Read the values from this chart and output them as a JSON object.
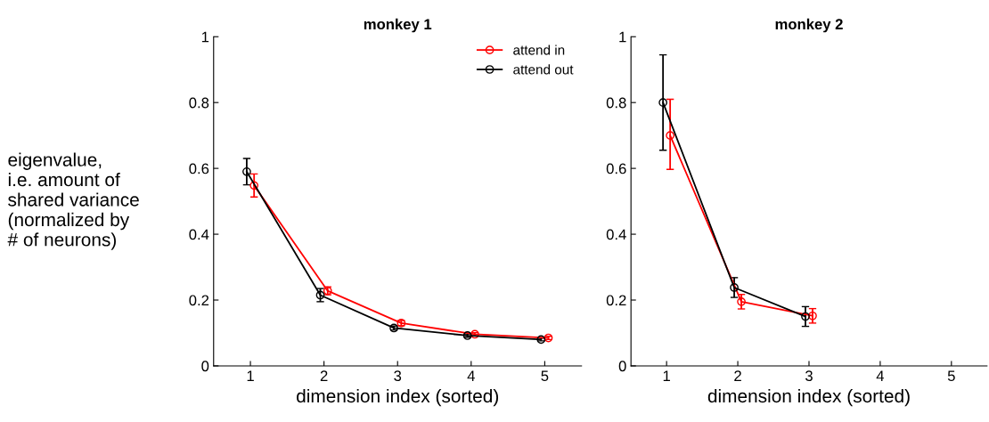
{
  "chart_data": [
    {
      "type": "line",
      "title": "monkey 1",
      "xlabel": "dimension index (sorted)",
      "ylabel": "eigenvalue,\ni.e. amount of\nshared variance\n(normalized by\n# of neurons)",
      "xlim": [
        0.5,
        5.5
      ],
      "xticks": [
        1,
        2,
        3,
        4,
        5
      ],
      "ylim": [
        0,
        1
      ],
      "yticks": [
        0,
        0.2,
        0.4,
        0.6,
        0.8,
        1
      ],
      "grid": false,
      "legend": "top right",
      "marker": "circle",
      "series": [
        {
          "name": "attend in",
          "color": "#ff0000",
          "x": [
            1.05,
            2.05,
            3.05,
            4.05,
            5.05
          ],
          "values": [
            0.548,
            0.228,
            0.13,
            0.096,
            0.085
          ],
          "errors": [
            0.035,
            0.012,
            0.008,
            0.005,
            0.005
          ]
        },
        {
          "name": "attend out",
          "color": "#000000",
          "x": [
            0.95,
            1.95,
            2.95,
            3.95,
            4.95
          ],
          "values": [
            0.59,
            0.215,
            0.115,
            0.092,
            0.08
          ],
          "errors": [
            0.04,
            0.02,
            0.006,
            0.005,
            0.004
          ]
        }
      ]
    },
    {
      "type": "line",
      "title": "monkey 2",
      "xlabel": "dimension index (sorted)",
      "xlim": [
        0.5,
        5.5
      ],
      "xticks": [
        1,
        2,
        3,
        4,
        5
      ],
      "ylim": [
        0,
        1
      ],
      "yticks": [
        0,
        0.2,
        0.4,
        0.6,
        0.8,
        1
      ],
      "grid": false,
      "marker": "circle",
      "series": [
        {
          "color": "#ff0000",
          "x": [
            1.05,
            2.05,
            3.05
          ],
          "values": [
            0.7,
            0.195,
            0.152
          ],
          "errors": [
            [
              0.597,
              0.81
            ],
            [
              0.173,
              0.217
            ],
            [
              0.13,
              0.174
            ]
          ]
        },
        {
          "color": "#000000",
          "x": [
            0.95,
            1.95,
            2.95
          ],
          "values": [
            0.8,
            0.238,
            0.15
          ],
          "errors": [
            [
              0.655,
              0.945
            ],
            [
              0.208,
              0.268
            ],
            [
              0.12,
              0.18
            ]
          ]
        }
      ]
    }
  ]
}
